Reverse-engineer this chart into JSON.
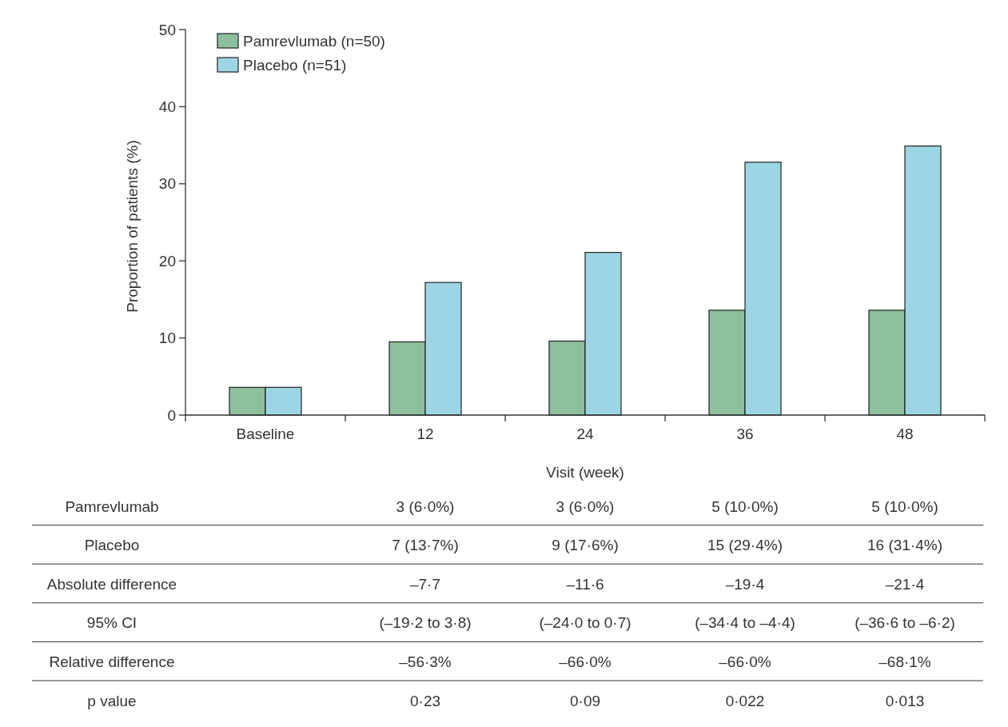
{
  "chart_data": {
    "type": "bar",
    "xlabel": "Visit (week)",
    "ylabel": "Proportion of patients (%)",
    "categories": [
      "Baseline",
      "12",
      "24",
      "36",
      "48"
    ],
    "series": [
      {
        "name": "Pamrevlumab (n=50)",
        "color": "#8dbf9f",
        "values": [
          3.6,
          9.5,
          9.6,
          13.6,
          13.6
        ]
      },
      {
        "name": "Placebo (n=51)",
        "color": "#9dd5e5",
        "values": [
          3.6,
          17.2,
          21.1,
          32.8,
          34.9
        ]
      }
    ],
    "ylim": [
      0,
      50
    ],
    "yticks": [
      0,
      10,
      20,
      30,
      40,
      50
    ],
    "grid": false,
    "legend": "top left",
    "annotations": [
      "Pamrevlumab",
      "3 (6·0%)",
      "3 (6·0%)",
      "5 (10·0%)",
      "5 (10·0%)",
      "Placebo",
      "7 (13·7%)",
      "9 (17·6%)",
      "15 (29·4%)",
      "16 (31·4%)",
      "Absolute difference",
      "–7·7",
      "–11·6",
      "–19·4",
      "–21·4",
      "95% CI",
      "(–19·2 to 3·8)",
      "(–24·0 to 0·7)",
      "(–34·4 to –4·4)",
      "(–36·6 to –6·2)",
      "Relative difference",
      "–56·3%",
      "–66·0%",
      "–66·0%",
      "–68·1%",
      "p value",
      "0·23",
      "0·09",
      "0·022",
      "0·013"
    ]
  }
}
